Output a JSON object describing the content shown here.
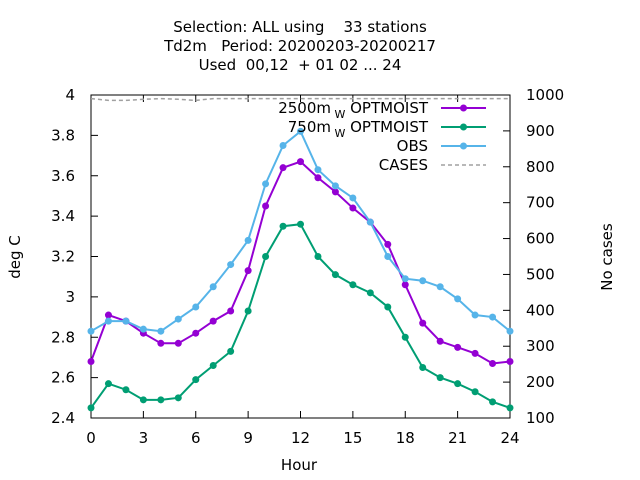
{
  "chart_data": {
    "type": "line",
    "title_lines": [
      "Selection: ALL using    33 stations",
      "Td2m   Period: 20200203-20200217",
      "Used  00,12  + 01 02 ... 24"
    ],
    "xlabel": "Hour",
    "ylabel": "deg C",
    "y2label": "No cases",
    "xlim": [
      0,
      24
    ],
    "ylim": [
      2.4,
      4.0
    ],
    "y2lim": [
      100,
      1000
    ],
    "x_ticks": [
      "0",
      "3",
      "6",
      "9",
      "12",
      "15",
      "18",
      "21",
      "24"
    ],
    "y_ticks": [
      "2.4",
      "2.6",
      "2.8",
      "3",
      "3.2",
      "3.4",
      "3.6",
      "3.8",
      "4"
    ],
    "y2_ticks": [
      "100",
      "200",
      "300",
      "400",
      "500",
      "600",
      "700",
      "800",
      "900",
      "1000"
    ],
    "grid": false,
    "legend_position": "top-right",
    "x": [
      0,
      1,
      2,
      3,
      4,
      5,
      6,
      7,
      8,
      9,
      10,
      11,
      12,
      13,
      14,
      15,
      16,
      17,
      18,
      19,
      20,
      21,
      22,
      23,
      24
    ],
    "series": [
      {
        "name": "2500m",
        "name_sub": "W",
        "name_suffix": "OPTMOIST",
        "color": "#9400d3",
        "axis": "y",
        "values": [
          2.68,
          2.91,
          2.88,
          2.82,
          2.77,
          2.77,
          2.82,
          2.88,
          2.93,
          3.13,
          3.45,
          3.64,
          3.67,
          3.59,
          3.52,
          3.44,
          3.37,
          3.26,
          3.06,
          2.87,
          2.78,
          2.75,
          2.72,
          2.67,
          2.68
        ]
      },
      {
        "name": "750m",
        "name_sub": "W",
        "name_suffix": "OPTMOIST",
        "color": "#009e73",
        "axis": "y",
        "values": [
          2.45,
          2.57,
          2.54,
          2.49,
          2.49,
          2.5,
          2.59,
          2.66,
          2.73,
          2.93,
          3.2,
          3.35,
          3.36,
          3.2,
          3.11,
          3.06,
          3.02,
          2.95,
          2.8,
          2.65,
          2.6,
          2.57,
          2.53,
          2.48,
          2.45
        ]
      },
      {
        "name": "OBS",
        "color": "#56b4e9",
        "axis": "y",
        "values": [
          2.83,
          2.88,
          2.88,
          2.84,
          2.83,
          2.89,
          2.95,
          3.05,
          3.16,
          3.28,
          3.56,
          3.75,
          3.82,
          3.63,
          3.55,
          3.49,
          3.37,
          3.2,
          3.09,
          3.08,
          3.05,
          2.99,
          2.91,
          2.9,
          2.83
        ]
      },
      {
        "name": "CASES",
        "color": "#a0a0a0",
        "dash": true,
        "axis": "y2",
        "values": [
          990,
          985,
          985,
          988,
          990,
          988,
          985,
          990,
          990,
          990,
          990,
          990,
          990,
          990,
          990,
          990,
          990,
          990,
          990,
          990,
          990,
          990,
          990,
          990,
          990
        ]
      }
    ]
  }
}
